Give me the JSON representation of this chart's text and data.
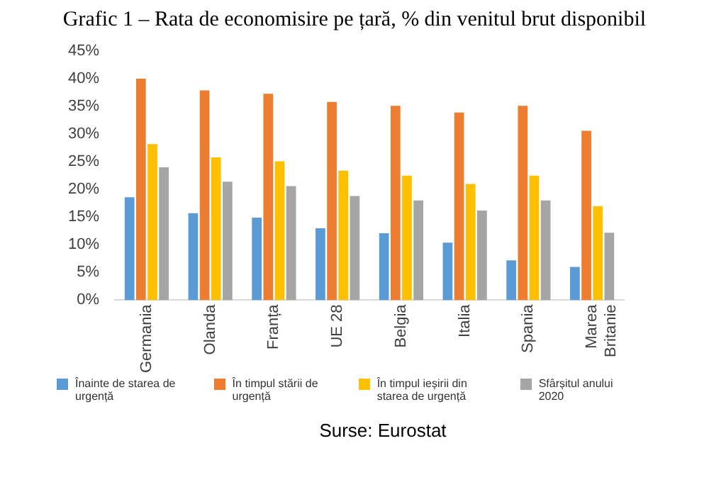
{
  "chart_data": {
    "type": "bar",
    "title": "Grafic 1 – Rata de economisire pe țară, % din venitul brut disponibil",
    "categories": [
      "Germania",
      "Olanda",
      "Franța",
      "UE 28",
      "Belgia",
      "Italia",
      "Spania",
      "Marea Britanie"
    ],
    "series": [
      {
        "name": "Înainte de starea de urgență",
        "color": "#5b9bd5",
        "values": [
          18.6,
          15.7,
          14.9,
          13.0,
          12.1,
          10.4,
          7.2,
          6.0
        ]
      },
      {
        "name": "În timpul stării de urgență",
        "color": "#ed7d31",
        "values": [
          40.0,
          37.9,
          37.3,
          35.8,
          35.1,
          33.9,
          35.1,
          30.6
        ]
      },
      {
        "name": "În timpul ieșirii din starea de urgență",
        "color": "#ffc000",
        "values": [
          28.2,
          25.8,
          25.1,
          23.4,
          22.5,
          21.0,
          22.5,
          17.0
        ]
      },
      {
        "name": "Sfârșitul anului 2020",
        "color": "#a5a5a5",
        "values": [
          24.0,
          21.4,
          20.6,
          18.8,
          18.0,
          16.2,
          18.0,
          12.2
        ]
      }
    ],
    "ylim": [
      0,
      45
    ],
    "yticks": [
      {
        "value": 0,
        "label": "0%"
      },
      {
        "value": 5,
        "label": "5%"
      },
      {
        "value": 10,
        "label": "10%"
      },
      {
        "value": 15,
        "label": "15%"
      },
      {
        "value": 20,
        "label": "20%"
      },
      {
        "value": 25,
        "label": "25%"
      },
      {
        "value": 30,
        "label": "30%"
      },
      {
        "value": 35,
        "label": "35%"
      },
      {
        "value": 40,
        "label": "40%"
      },
      {
        "value": 45,
        "label": "45%"
      }
    ],
    "grid": false,
    "legend": "bottom",
    "annotations": [
      "Surse: Eurostat"
    ]
  }
}
